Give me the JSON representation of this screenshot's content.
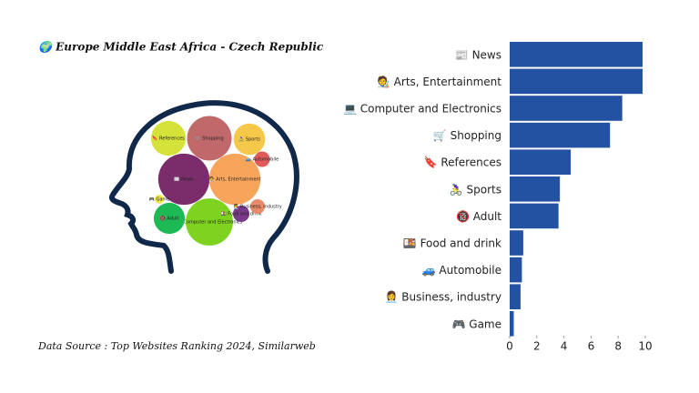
{
  "chart_data": {
    "type": "bar",
    "orientation": "horizontal",
    "title": "🌍 Europe Middle East Africa - Czech Republic",
    "source": "Data Source : Top Websites Ranking 2024, Similarweb",
    "categories": [
      "📰 News",
      "🧑‍🎨 Arts, Entertainment",
      "💻 Computer and Electronics",
      "🛒 Shopping",
      "🔖 References",
      "🚴‍♀️ Sports",
      "🔞 Adult",
      "🍱 Food and drink",
      "🚙 Automobile",
      "👩‍💼 Business, industry",
      "🎮 Game"
    ],
    "values": [
      9.8,
      9.8,
      8.3,
      7.4,
      4.5,
      3.7,
      3.6,
      1.0,
      0.9,
      0.8,
      0.3
    ],
    "color": "#2352a3",
    "bubble_colors": [
      "#7b2d6b",
      "#f7a55a",
      "#7ed321",
      "#c0686a",
      "#d4e23a",
      "#f5c84a",
      "#1db954",
      "#7a3a8a",
      "#e05a5a",
      "#e88a6a",
      "#f2e84a"
    ],
    "xlim": [
      0,
      10
    ],
    "xticks": [
      0,
      2,
      4,
      6,
      8,
      10
    ]
  }
}
